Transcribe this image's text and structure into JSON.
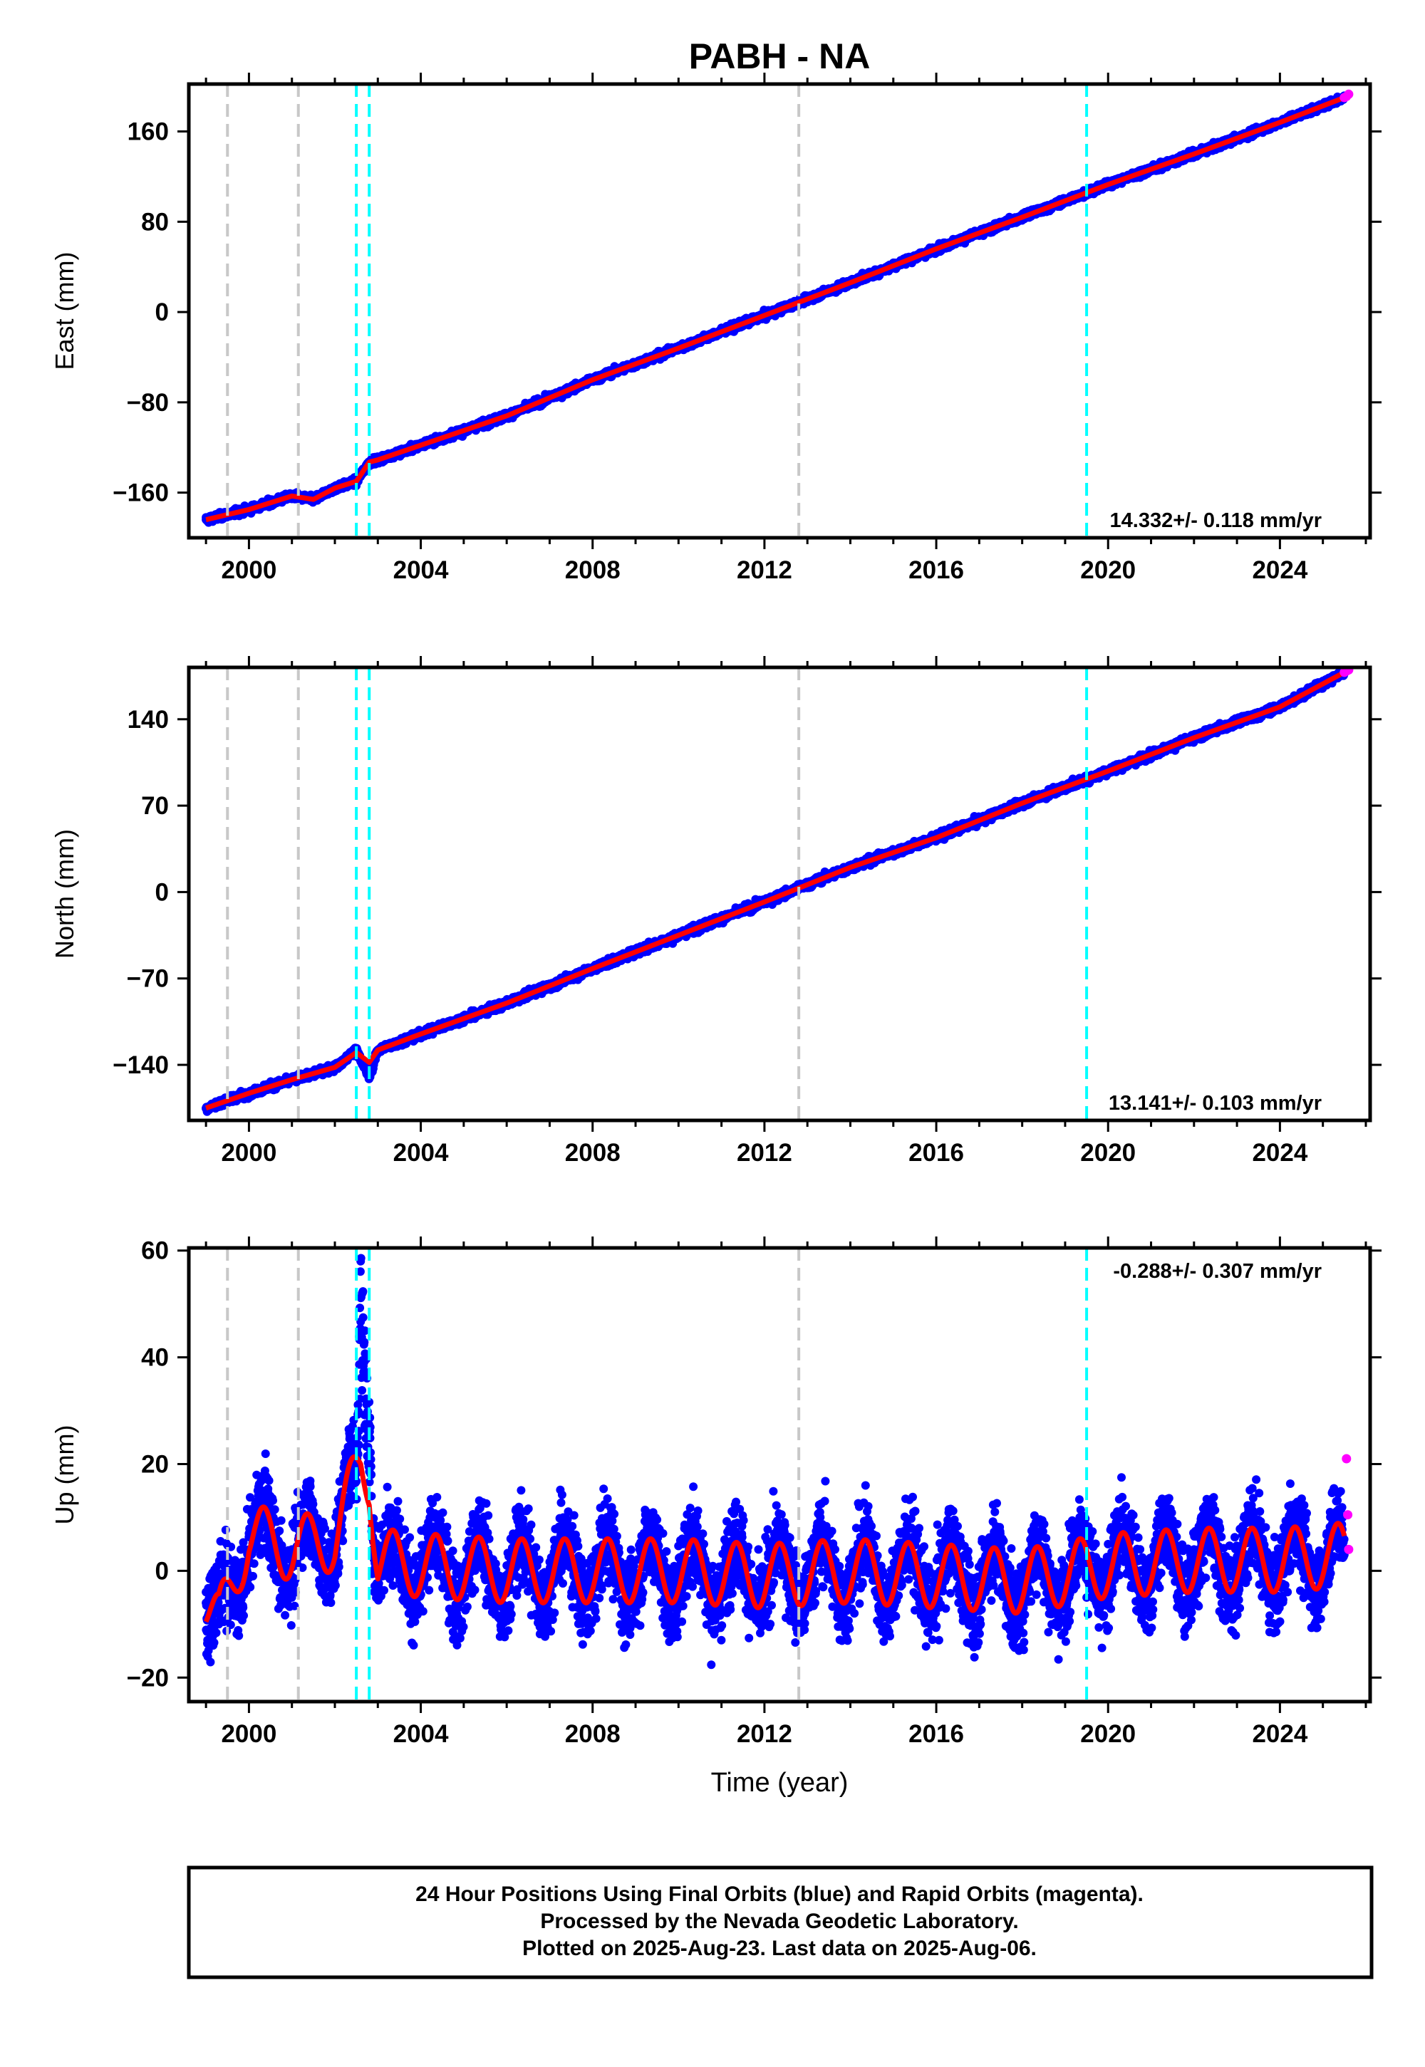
{
  "title": "PABH - NA",
  "x_axis_label": "Time (year)",
  "footer": {
    "line1": "24 Hour Positions Using Final Orbits (blue) and Rapid Orbits (magenta).",
    "line2": "Processed by the Nevada Geodetic Laboratory.",
    "line3": "Plotted on 2025-Aug-23. Last data on 2025-Aug-06."
  },
  "colors": {
    "final_orbits": "#0000ff",
    "rapid_orbits": "#ff00ff",
    "model_fit": "#ff0000",
    "equipment_change": "#c8c8c8",
    "earthquake": "#00ffff",
    "frame": "#000000"
  },
  "chart_data": [
    {
      "type": "scatter",
      "panel": "east",
      "ylabel": "East (mm)",
      "xlim": [
        1998.6,
        2026.1
      ],
      "ylim": [
        -200,
        202
      ],
      "xticks": [
        2000,
        2004,
        2008,
        2012,
        2016,
        2020,
        2024
      ],
      "yticks": [
        -160,
        -80,
        0,
        80,
        160
      ],
      "rate_label": "14.332+/- 0.118 mm/yr",
      "rate_label_position": "bottom-right",
      "grid": false,
      "vlines_gray": [
        1999.5,
        2001.15,
        2012.8
      ],
      "vlines_cyan": [
        2002.5,
        2002.8,
        2019.5
      ],
      "series": [
        {
          "name": "Final Orbits",
          "color": "#0000ff",
          "x": [
            1999.0,
            2000.0,
            2001.0,
            2001.5,
            2002.0,
            2002.5,
            2002.8,
            2003.0,
            2004.0,
            2006.0,
            2008.0,
            2010.0,
            2012.0,
            2014.0,
            2016.0,
            2018.0,
            2020.0,
            2022.0,
            2024.0,
            2025.5
          ],
          "y": [
            -184,
            -175,
            -163,
            -166,
            -156,
            -150,
            -133,
            -131,
            -118,
            -92,
            -60,
            -32,
            -3,
            26,
            56,
            84,
            113,
            140,
            168,
            190
          ]
        },
        {
          "name": "Rapid Orbits",
          "color": "#ff00ff",
          "x": [
            2025.5,
            2025.55,
            2025.6
          ],
          "y": [
            190,
            191,
            193
          ]
        },
        {
          "name": "Model fit",
          "color": "#ff0000",
          "x": [
            1999.0,
            2000.0,
            2001.0,
            2001.5,
            2002.0,
            2002.5,
            2002.8,
            2003.0,
            2004.0,
            2006.0,
            2008.0,
            2010.0,
            2012.0,
            2014.0,
            2016.0,
            2018.0,
            2020.0,
            2022.0,
            2024.0,
            2025.5
          ],
          "y": [
            -184,
            -175,
            -163,
            -166,
            -156,
            -150,
            -133,
            -131,
            -118,
            -92,
            -60,
            -32,
            -3,
            26,
            56,
            84,
            113,
            140,
            168,
            190
          ]
        }
      ]
    },
    {
      "type": "scatter",
      "panel": "north",
      "ylabel": "North (mm)",
      "xlim": [
        1998.6,
        2026.1
      ],
      "ylim": [
        -185,
        182
      ],
      "xticks": [
        2000,
        2004,
        2008,
        2012,
        2016,
        2020,
        2024
      ],
      "yticks": [
        -140,
        -70,
        0,
        70,
        140
      ],
      "rate_label": "13.141+/- 0.103 mm/yr",
      "rate_label_position": "bottom-right",
      "grid": false,
      "vlines_gray": [
        1999.5,
        2001.15,
        2012.8
      ],
      "vlines_cyan": [
        2002.5,
        2002.8,
        2019.5
      ],
      "series": [
        {
          "name": "Final Orbits",
          "color": "#0000ff",
          "x": [
            1999.0,
            2000.0,
            2001.0,
            2002.0,
            2002.5,
            2002.8,
            2003.0,
            2004.0,
            2006.0,
            2008.0,
            2010.0,
            2012.0,
            2014.0,
            2016.0,
            2018.0,
            2020.0,
            2022.0,
            2024.0,
            2025.5
          ],
          "y": [
            -175,
            -163,
            -152,
            -142,
            -128,
            -150,
            -128,
            -115,
            -90,
            -62,
            -35,
            -8,
            20,
            44,
            72,
            98,
            125,
            150,
            178
          ]
        },
        {
          "name": "Rapid Orbits",
          "color": "#ff00ff",
          "x": [
            2025.5,
            2025.55,
            2025.6
          ],
          "y": [
            178,
            179,
            180
          ]
        },
        {
          "name": "Model fit",
          "color": "#ff0000",
          "x": [
            1999.0,
            2000.0,
            2001.0,
            2002.0,
            2002.5,
            2002.8,
            2003.0,
            2004.0,
            2006.0,
            2008.0,
            2010.0,
            2012.0,
            2014.0,
            2016.0,
            2018.0,
            2020.0,
            2022.0,
            2024.0,
            2025.5
          ],
          "y": [
            -175,
            -163,
            -152,
            -142,
            -130,
            -138,
            -128,
            -115,
            -90,
            -62,
            -35,
            -8,
            20,
            44,
            72,
            98,
            125,
            150,
            178
          ]
        }
      ]
    },
    {
      "type": "scatter",
      "panel": "up",
      "ylabel": "Up (mm)",
      "xlim": [
        1998.6,
        2026.1
      ],
      "ylim": [
        -24.5,
        60.5
      ],
      "xticks": [
        2000,
        2004,
        2008,
        2012,
        2016,
        2020,
        2024
      ],
      "yticks": [
        -20,
        0,
        20,
        40,
        60
      ],
      "rate_label": "-0.288+/- 0.307 mm/yr",
      "rate_label_position": "top-right",
      "grid": false,
      "vlines_gray": [
        1999.5,
        2001.15,
        2012.8
      ],
      "vlines_cyan": [
        2002.5,
        2002.8,
        2019.5
      ],
      "seasonal_amplitude_mm": 6,
      "scatter_spread_mm": 6,
      "series": [
        {
          "name": "Final Orbits",
          "color": "#0000ff",
          "x": [
            1999.0,
            1999.3,
            2000.0,
            2001.0,
            2002.0,
            2002.5,
            2002.6,
            2002.7,
            2003.0,
            2004.0,
            2006.0,
            2008.0,
            2010.0,
            2012.0,
            2014.0,
            2016.0,
            2018.0,
            2019.5,
            2020.0,
            2022.0,
            2024.0,
            2025.5
          ],
          "y": [
            -6,
            -10,
            7,
            4,
            6,
            20,
            58,
            45,
            2,
            3,
            1,
            0,
            0,
            -1,
            0,
            -1,
            -2,
            -5,
            5,
            4,
            3,
            3
          ]
        },
        {
          "name": "Rapid Orbits",
          "color": "#ff00ff",
          "x": [
            2025.55,
            2025.58,
            2025.6
          ],
          "y": [
            21,
            10.5,
            4
          ]
        },
        {
          "name": "Model fit",
          "color": "#ff0000",
          "x": [
            1999.0,
            1999.3,
            2000.0,
            2001.0,
            2002.0,
            2002.6,
            2002.8,
            2003.0,
            2004.0,
            2006.0,
            2008.0,
            2010.0,
            2012.0,
            2014.0,
            2016.0,
            2018.0,
            2020.0,
            2022.0,
            2024.0,
            2025.5
          ],
          "y": [
            -6,
            -10,
            7,
            4,
            6,
            20,
            18,
            2,
            1,
            0,
            0,
            0,
            -1,
            0,
            -1,
            -2,
            1,
            2,
            2,
            3
          ]
        }
      ]
    }
  ]
}
